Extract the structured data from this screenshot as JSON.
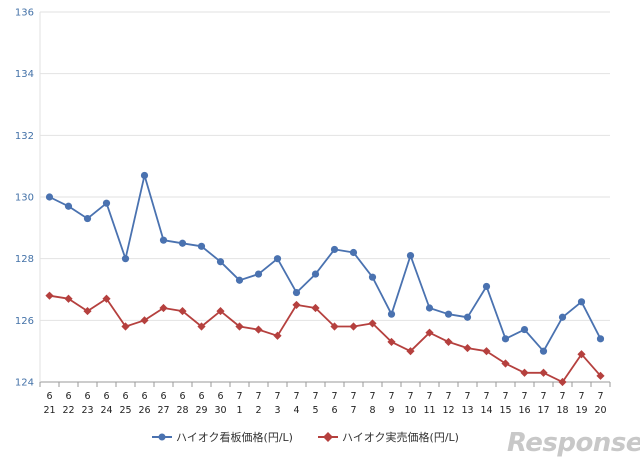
{
  "chart_data": {
    "type": "line",
    "categories": [
      [
        "6",
        "21"
      ],
      [
        "6",
        "22"
      ],
      [
        "6",
        "23"
      ],
      [
        "6",
        "24"
      ],
      [
        "6",
        "25"
      ],
      [
        "6",
        "26"
      ],
      [
        "6",
        "27"
      ],
      [
        "6",
        "28"
      ],
      [
        "6",
        "29"
      ],
      [
        "6",
        "30"
      ],
      [
        "7",
        "1"
      ],
      [
        "7",
        "2"
      ],
      [
        "7",
        "3"
      ],
      [
        "7",
        "4"
      ],
      [
        "7",
        "5"
      ],
      [
        "7",
        "6"
      ],
      [
        "7",
        "7"
      ],
      [
        "7",
        "8"
      ],
      [
        "7",
        "9"
      ],
      [
        "7",
        "10"
      ],
      [
        "7",
        "11"
      ],
      [
        "7",
        "12"
      ],
      [
        "7",
        "13"
      ],
      [
        "7",
        "14"
      ],
      [
        "7",
        "15"
      ],
      [
        "7",
        "16"
      ],
      [
        "7",
        "17"
      ],
      [
        "7",
        "18"
      ],
      [
        "7",
        "19"
      ],
      [
        "7",
        "20"
      ]
    ],
    "series": [
      {
        "name": "ハイオク看板価格(円/L)",
        "color": "#4a72b0",
        "marker": "circle",
        "values": [
          130.0,
          129.7,
          129.3,
          129.8,
          128.0,
          130.7,
          128.6,
          128.5,
          128.4,
          127.9,
          127.3,
          127.5,
          128.0,
          126.9,
          127.5,
          128.3,
          128.2,
          127.4,
          126.2,
          128.1,
          126.4,
          126.2,
          126.1,
          127.1,
          125.4,
          125.7,
          125.0,
          126.1,
          126.6,
          125.4
        ]
      },
      {
        "name": "ハイオク実売価格(円/L)",
        "color": "#b5403e",
        "marker": "diamond",
        "values": [
          126.8,
          126.7,
          126.3,
          126.7,
          125.8,
          126.0,
          126.4,
          126.3,
          125.8,
          126.3,
          125.8,
          125.7,
          125.5,
          126.5,
          126.4,
          125.8,
          125.8,
          125.9,
          125.3,
          125.0,
          125.6,
          125.3,
          125.1,
          125.0,
          124.6,
          124.3,
          124.3,
          124.0,
          124.9,
          124.2
        ]
      }
    ],
    "ylim": [
      124,
      136
    ],
    "yticks": [
      "124",
      "126",
      "128",
      "130",
      "132",
      "134",
      "136"
    ],
    "grid": true,
    "legend": "bottom",
    "title": "",
    "xlabel": "",
    "ylabel": ""
  },
  "watermark": "Response."
}
